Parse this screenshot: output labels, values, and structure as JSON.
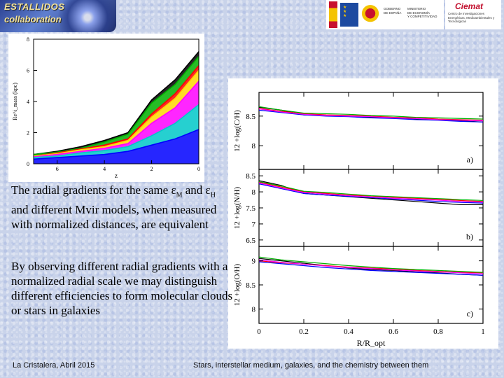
{
  "logos": {
    "left_line1": "ESTALLIDOS",
    "left_line2": "collaboration",
    "gov_line1": "GOBIERNO\nDE ESPAÑA",
    "gov_line2": "MINISTERIO\nDE ECONOMÍA\nY COMPETITIVIDAD",
    "ciemat_name": "Ciemat",
    "ciemat_sub": "Centro de Investigaciones Energéticas, Medioambientales y Tecnológicas"
  },
  "text": {
    "para1_a": "The radial gradients for the same ε",
    "para1_sub1": "M",
    "para1_b": " and ε",
    "para1_sub2": "H",
    "para1_c": " and different Mvir models, when measured with normalized distances, are equivalent",
    "para2": "By observing different radial gradients with a normalized radial scale we may distinguish  different efficiencies to form molecular clouds or stars in galaxies"
  },
  "footer": {
    "left": "La Cristalera, Abril  2015",
    "right": "Stars, interstellar medium, galaxies, and the chemistry between them"
  },
  "colors": {
    "series": [
      "#000000",
      "#ff0000",
      "#00b000",
      "#0000ff",
      "#00c8c8",
      "#ff00ff",
      "#ffa500",
      "#8b4513"
    ],
    "background": "#c9d3ea"
  },
  "chart_data": [
    {
      "type": "line",
      "title": "",
      "xlabel": "z",
      "ylabel": "Re^i_mass (kpc)",
      "xlim": [
        7,
        0
      ],
      "ylim": [
        0,
        8
      ],
      "x_ticks": [
        6,
        4,
        2,
        0
      ],
      "y_ticks": [
        0,
        2,
        4,
        6,
        8
      ],
      "x": [
        7,
        6,
        5,
        4,
        3,
        2,
        1,
        0
      ],
      "series": [
        {
          "name": "black",
          "values": [
            0.6,
            0.8,
            1.1,
            1.5,
            2.0,
            4.1,
            5.4,
            7.2
          ]
        },
        {
          "name": "green",
          "values": [
            0.6,
            0.75,
            1.0,
            1.4,
            1.9,
            3.9,
            5.1,
            6.9
          ]
        },
        {
          "name": "red",
          "values": [
            0.5,
            0.7,
            0.95,
            1.2,
            1.6,
            3.2,
            4.5,
            6.3
          ]
        },
        {
          "name": "yellow",
          "values": [
            0.5,
            0.65,
            0.9,
            1.1,
            1.5,
            3.0,
            4.2,
            6.0
          ]
        },
        {
          "name": "magenta",
          "values": [
            0.45,
            0.6,
            0.8,
            1.0,
            1.3,
            2.6,
            3.6,
            5.3
          ]
        },
        {
          "name": "cyan",
          "values": [
            0.4,
            0.5,
            0.7,
            0.85,
            1.1,
            1.8,
            2.6,
            3.8
          ]
        },
        {
          "name": "blue",
          "values": [
            0.3,
            0.4,
            0.5,
            0.6,
            0.8,
            1.2,
            1.6,
            2.2
          ]
        }
      ]
    },
    {
      "type": "line",
      "title": "",
      "xlabel": "R/R_opt",
      "xlim": [
        0,
        1
      ],
      "x_ticks": [
        0,
        0.2,
        0.4,
        0.6,
        0.8,
        1
      ],
      "x": [
        0,
        0.1,
        0.2,
        0.3,
        0.4,
        0.5,
        0.6,
        0.7,
        0.8,
        0.9,
        1.0
      ],
      "panels": [
        {
          "label": "a)",
          "ylabel": "12 +log(C/H)",
          "ylim": [
            7.6,
            8.9
          ],
          "y_ticks": [
            8,
            8.5
          ],
          "series": [
            {
              "name": "black",
              "values": [
                8.65,
                8.6,
                8.52,
                8.51,
                8.5,
                8.48,
                8.47,
                8.45,
                8.44,
                8.42,
                8.4
              ]
            },
            {
              "name": "red",
              "values": [
                8.63,
                8.58,
                8.54,
                8.52,
                8.51,
                8.5,
                8.48,
                8.47,
                8.45,
                8.44,
                8.43
              ]
            },
            {
              "name": "green",
              "values": [
                8.66,
                8.6,
                8.55,
                8.54,
                8.53,
                8.51,
                8.5,
                8.48,
                8.47,
                8.46,
                8.45
              ]
            },
            {
              "name": "blue",
              "values": [
                8.6,
                8.56,
                8.52,
                8.5,
                8.49,
                8.47,
                8.46,
                8.44,
                8.43,
                8.41,
                8.4
              ]
            },
            {
              "name": "magenta",
              "values": [
                8.62,
                8.57,
                8.53,
                8.51,
                8.5,
                8.49,
                8.47,
                8.46,
                8.44,
                8.43,
                8.42
              ]
            }
          ]
        },
        {
          "label": "b)",
          "ylabel": "12 +log(N/H)",
          "ylim": [
            6.3,
            8.7
          ],
          "y_ticks": [
            6.5,
            7,
            7.5,
            8,
            8.5
          ],
          "series": [
            {
              "name": "black",
              "values": [
                8.35,
                8.2,
                7.95,
                7.9,
                7.85,
                7.8,
                7.75,
                7.7,
                7.65,
                7.6,
                7.6
              ]
            },
            {
              "name": "red",
              "values": [
                8.3,
                8.15,
                8.0,
                7.95,
                7.9,
                7.87,
                7.83,
                7.8,
                7.77,
                7.73,
                7.7
              ]
            },
            {
              "name": "green",
              "values": [
                8.32,
                8.18,
                8.02,
                7.98,
                7.93,
                7.88,
                7.85,
                7.82,
                7.79,
                7.76,
                7.73
              ]
            },
            {
              "name": "blue",
              "values": [
                8.25,
                8.1,
                7.95,
                7.9,
                7.86,
                7.82,
                7.78,
                7.74,
                7.7,
                7.67,
                7.65
              ]
            },
            {
              "name": "magenta",
              "values": [
                8.28,
                8.12,
                7.98,
                7.93,
                7.88,
                7.84,
                7.8,
                7.77,
                7.74,
                7.7,
                7.68
              ]
            }
          ]
        },
        {
          "label": "c)",
          "ylabel": "12 +log(O/H)",
          "ylim": [
            7.7,
            9.3
          ],
          "y_ticks": [
            8,
            8.5,
            9
          ],
          "series": [
            {
              "name": "black",
              "values": [
                9.05,
                9.0,
                8.95,
                8.9,
                8.85,
                8.82,
                8.8,
                8.77,
                8.75,
                8.72,
                8.7
              ]
            },
            {
              "name": "red",
              "values": [
                9.0,
                8.96,
                8.93,
                8.9,
                8.87,
                8.85,
                8.83,
                8.8,
                8.78,
                8.76,
                8.75
              ]
            },
            {
              "name": "green",
              "values": [
                9.08,
                9.02,
                8.98,
                8.94,
                8.9,
                8.87,
                8.84,
                8.82,
                8.8,
                8.78,
                8.76
              ]
            },
            {
              "name": "blue",
              "values": [
                8.98,
                8.94,
                8.9,
                8.86,
                8.83,
                8.8,
                8.78,
                8.76,
                8.74,
                8.72,
                8.7
              ]
            },
            {
              "name": "magenta",
              "values": [
                9.02,
                8.97,
                8.93,
                8.89,
                8.86,
                8.84,
                8.81,
                8.79,
                8.77,
                8.75,
                8.73
              ]
            }
          ]
        }
      ]
    }
  ]
}
